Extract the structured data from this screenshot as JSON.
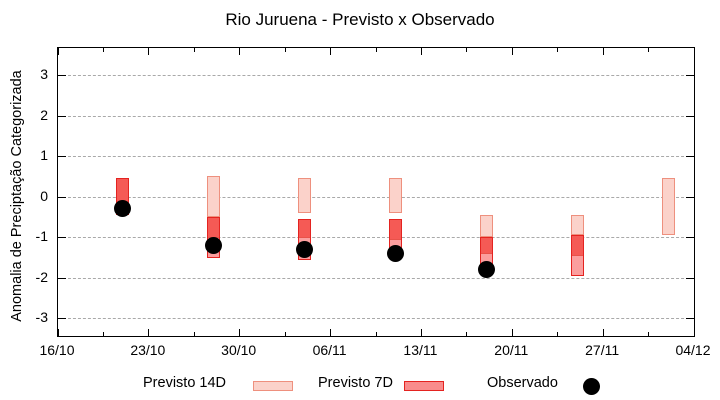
{
  "chart_data": {
    "type": "interval-bar+scatter",
    "title": "Rio Juruena - Previsto x Observado",
    "ylabel": "Anomalia de Preciptação Categorizada",
    "xlabel": "",
    "x_tick_labels": [
      "16/10",
      "23/10",
      "30/10",
      "06/11",
      "13/11",
      "20/11",
      "27/11",
      "04/12"
    ],
    "x_tick_days": [
      0,
      7,
      14,
      21,
      28,
      35,
      42,
      49
    ],
    "x_minor_tick_days": [
      3.5,
      10.5,
      17.5,
      24.5,
      31.5,
      38.5,
      45.5
    ],
    "y_ticks": [
      3,
      2,
      1,
      0,
      -1,
      -2,
      -3
    ],
    "ylim": [
      -3.45,
      3.65
    ],
    "grid": "horizontal-dotted",
    "legend": [
      "Previsto 14D",
      "Previsto 7D",
      "Observado"
    ],
    "colors": {
      "forecast14_fill": "#fbd2ca",
      "forecast14_border": "#ee907e",
      "forecast7_fill": "#fb9e9e",
      "forecast7_overlap_fill": "#f55a55",
      "forecast7_border": "#e42320",
      "observed": "#000000",
      "grid": "#a9a9a9"
    },
    "groups": [
      {
        "date": "21/10",
        "day": 5,
        "p14": null,
        "bar7": {
          "from": 0.45,
          "to": -0.45,
          "split": -0.45
        },
        "obs": -0.3
      },
      {
        "date": "28/10",
        "day": 12,
        "p14": {
          "from": 0.5,
          "to": -0.5
        },
        "bar7": {
          "from": -0.5,
          "to": -1.5,
          "split": -1.0
        },
        "obs": -1.2
      },
      {
        "date": "04/11",
        "day": 19,
        "p14": {
          "from": 0.45,
          "to": -0.4
        },
        "bar7": {
          "from": -0.55,
          "to": -1.55,
          "split": -1.0
        },
        "obs": -1.3
      },
      {
        "date": "11/11",
        "day": 26,
        "p14": {
          "from": 0.45,
          "to": -0.4
        },
        "bar7": {
          "from": -0.55,
          "to": -1.5,
          "split": -1.05
        },
        "obs": -1.4
      },
      {
        "date": "18/11",
        "day": 33,
        "p14": {
          "from": -0.45,
          "to": -1.0
        },
        "bar7": {
          "from": -1.0,
          "to": -1.7,
          "split": -1.4
        },
        "obs": -1.8
      },
      {
        "date": "25/11",
        "day": 40,
        "p14": {
          "from": -0.45,
          "to": -0.95
        },
        "bar7": {
          "from": -0.95,
          "to": -1.95,
          "split": -1.45
        },
        "obs": null
      },
      {
        "date": "02/12",
        "day": 47,
        "p14": {
          "from": 0.45,
          "to": -0.95
        },
        "bar7": null,
        "obs": null
      }
    ],
    "series": [
      {
        "name": "Previsto 14D",
        "type": "interval",
        "intervals": [
          [
            5,
            0.45,
            -0.45
          ],
          [
            12,
            0.5,
            -1.0
          ],
          [
            19,
            0.45,
            -1.0
          ],
          [
            26,
            0.45,
            -1.05
          ],
          [
            33,
            -0.45,
            -1.4
          ],
          [
            40,
            -0.45,
            -1.45
          ],
          [
            47,
            0.45,
            -0.95
          ]
        ]
      },
      {
        "name": "Previsto 7D",
        "type": "interval",
        "intervals": [
          [
            5,
            0.45,
            -0.45
          ],
          [
            12,
            -0.5,
            -1.5
          ],
          [
            19,
            -0.55,
            -1.55
          ],
          [
            26,
            -0.55,
            -1.5
          ],
          [
            33,
            -1.0,
            -1.7
          ],
          [
            40,
            -0.95,
            -1.95
          ]
        ]
      },
      {
        "name": "Observado",
        "type": "scatter",
        "points": [
          [
            5,
            -0.3
          ],
          [
            12,
            -1.2
          ],
          [
            19,
            -1.3
          ],
          [
            26,
            -1.4
          ],
          [
            33,
            -1.8
          ]
        ]
      }
    ]
  }
}
